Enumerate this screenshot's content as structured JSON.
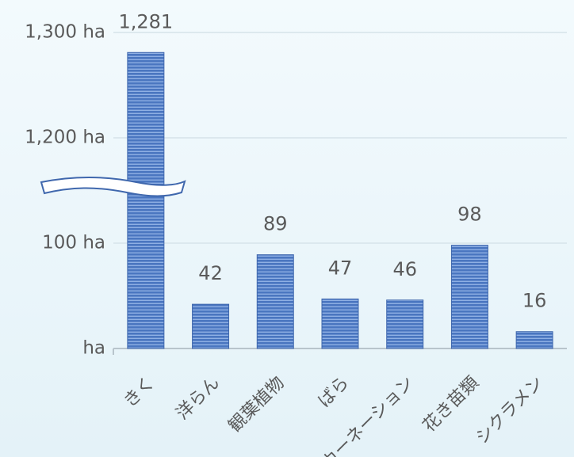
{
  "chart_data": {
    "type": "bar",
    "categories": [
      "きく",
      "洋らん",
      "観葉植物",
      "ばら",
      "カーネーション",
      "花き苗類",
      "シクラメン"
    ],
    "values": [
      1281,
      42,
      89,
      47,
      46,
      98,
      16
    ],
    "value_labels": [
      "1,281",
      "42",
      "89",
      "47",
      "46",
      "98",
      "16"
    ],
    "color": "#4a76c0",
    "ylim": [
      0,
      1300
    ],
    "y_break": [
      150,
      1150
    ],
    "yticks": [
      {
        "value": 0,
        "label": "ha"
      },
      {
        "value": 100,
        "label": "100 ha"
      },
      {
        "value": 1200,
        "label": "1,200 ha"
      },
      {
        "value": 1300,
        "label": "1,300 ha"
      }
    ],
    "grid": true
  }
}
